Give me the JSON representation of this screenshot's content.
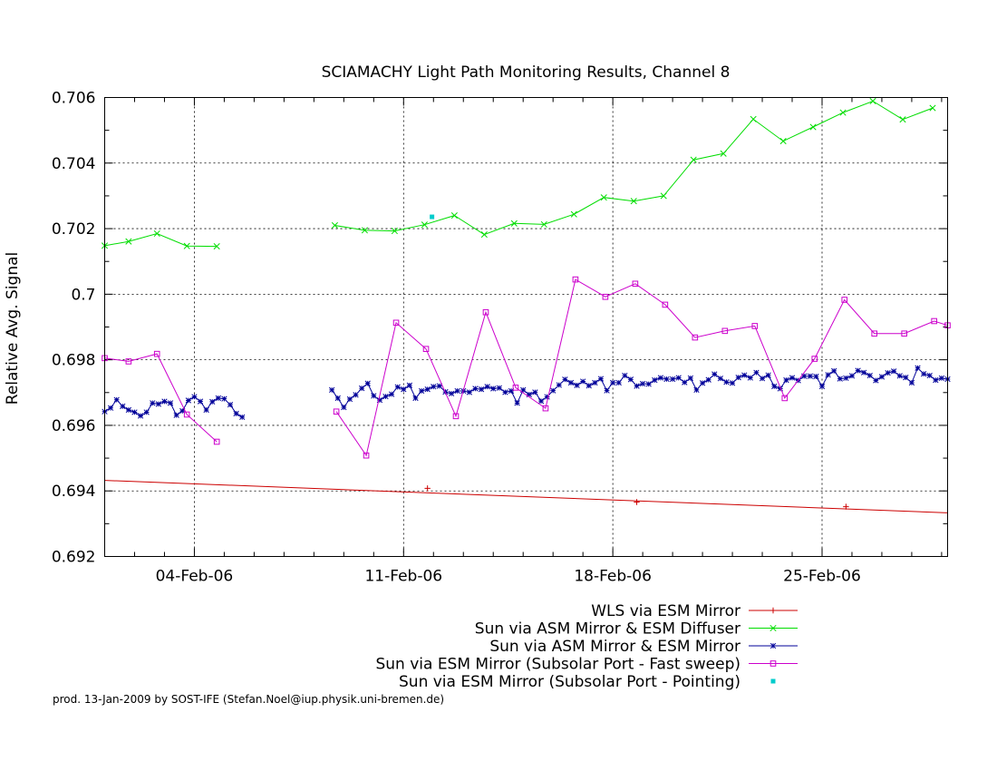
{
  "footer": "prod. 13-Jan-2009 by SOST-IFE (Stefan.Noel@iup.physik.uni-bremen.de)",
  "chart_data": {
    "type": "line",
    "title": "SCIAMACHY Light Path Monitoring Results, Channel 8",
    "xlabel": "",
    "ylabel": "Relative Avg. Signal",
    "xlim": [
      1.0,
      29.2
    ],
    "ylim": [
      0.692,
      0.706
    ],
    "x_ticks": [
      {
        "x": 4,
        "label": "04-Feb-06"
      },
      {
        "x": 11,
        "label": "11-Feb-06"
      },
      {
        "x": 18,
        "label": "18-Feb-06"
      },
      {
        "x": 25,
        "label": "25-Feb-06"
      }
    ],
    "y_ticks": [
      {
        "y": 0.692,
        "label": "0.692"
      },
      {
        "y": 0.694,
        "label": "0.694"
      },
      {
        "y": 0.696,
        "label": "0.696"
      },
      {
        "y": 0.698,
        "label": "0.698"
      },
      {
        "y": 0.7,
        "label": "0.7"
      },
      {
        "y": 0.702,
        "label": "0.702"
      },
      {
        "y": 0.704,
        "label": "0.704"
      },
      {
        "y": 0.706,
        "label": "0.706"
      }
    ],
    "grid": true,
    "legend_position": "bottom",
    "series": [
      {
        "name": "WLS via ESM Mirror",
        "color": "#cc0000",
        "marker": "plus",
        "segments": [
          [
            [
              1.0,
              0.69432
            ],
            [
              29.2,
              0.69333
            ]
          ]
        ],
        "marker_points": [
          [
            11.8,
            0.69408
          ],
          [
            18.8,
            0.69366
          ],
          [
            25.8,
            0.69352
          ]
        ]
      },
      {
        "name": "Sun via ASM Mirror & ESM Diffuser",
        "color": "#00dd00",
        "marker": "cross",
        "segments": [
          [
            [
              1.0,
              0.70148
            ],
            [
              1.8,
              0.70161
            ],
            [
              2.75,
              0.70185
            ],
            [
              3.75,
              0.70147
            ],
            [
              4.75,
              0.70146
            ]
          ],
          [
            [
              8.7,
              0.7021
            ],
            [
              9.7,
              0.70195
            ],
            [
              10.7,
              0.70193
            ],
            [
              11.7,
              0.70212
            ],
            [
              12.7,
              0.7024
            ],
            [
              13.7,
              0.70182
            ],
            [
              14.7,
              0.70216
            ],
            [
              15.7,
              0.70213
            ],
            [
              16.7,
              0.70244
            ],
            [
              17.7,
              0.70295
            ],
            [
              18.7,
              0.70284
            ],
            [
              19.7,
              0.703
            ],
            [
              20.7,
              0.7041
            ],
            [
              21.7,
              0.70429
            ],
            [
              22.7,
              0.70534
            ],
            [
              23.7,
              0.70467
            ],
            [
              24.7,
              0.7051
            ],
            [
              25.7,
              0.70554
            ],
            [
              26.7,
              0.70589
            ],
            [
              27.7,
              0.70533
            ],
            [
              28.7,
              0.70568
            ]
          ]
        ]
      },
      {
        "name": "Sun via ASM Mirror & ESM Mirror",
        "color": "#000099",
        "marker": "star",
        "segments": [
          [
            [
              1.0,
              0.69642
            ],
            [
              1.2,
              0.69653
            ],
            [
              1.4,
              0.69678
            ],
            [
              1.6,
              0.69658
            ],
            [
              1.8,
              0.69647
            ],
            [
              2.0,
              0.6964
            ],
            [
              2.2,
              0.69629
            ],
            [
              2.4,
              0.6964
            ],
            [
              2.6,
              0.69668
            ],
            [
              2.8,
              0.69665
            ],
            [
              3.0,
              0.69673
            ],
            [
              3.2,
              0.69668
            ],
            [
              3.4,
              0.69631
            ],
            [
              3.6,
              0.69644
            ],
            [
              3.8,
              0.69676
            ],
            [
              4.0,
              0.69687
            ],
            [
              4.2,
              0.69673
            ],
            [
              4.4,
              0.69647
            ],
            [
              4.6,
              0.69672
            ],
            [
              4.8,
              0.69683
            ],
            [
              5.0,
              0.69681
            ],
            [
              5.2,
              0.69663
            ],
            [
              5.4,
              0.69636
            ],
            [
              5.6,
              0.69625
            ]
          ],
          [
            [
              8.6,
              0.69708
            ],
            [
              8.8,
              0.69683
            ],
            [
              9.0,
              0.69655
            ],
            [
              9.2,
              0.6968
            ],
            [
              9.4,
              0.69693
            ],
            [
              9.6,
              0.69713
            ],
            [
              9.8,
              0.69728
            ],
            [
              10.0,
              0.6969
            ],
            [
              10.2,
              0.69677
            ],
            [
              10.4,
              0.69688
            ],
            [
              10.6,
              0.69695
            ],
            [
              10.8,
              0.69717
            ],
            [
              11.0,
              0.6971
            ],
            [
              11.2,
              0.69722
            ],
            [
              11.4,
              0.69683
            ],
            [
              11.6,
              0.69705
            ],
            [
              11.8,
              0.6971
            ],
            [
              12.0,
              0.69718
            ],
            [
              12.2,
              0.6972
            ],
            [
              12.4,
              0.69702
            ],
            [
              12.6,
              0.69697
            ],
            [
              12.8,
              0.69705
            ],
            [
              13.0,
              0.69705
            ],
            [
              13.2,
              0.69701
            ],
            [
              13.4,
              0.69712
            ],
            [
              13.6,
              0.6971
            ],
            [
              13.8,
              0.69718
            ],
            [
              14.0,
              0.69712
            ],
            [
              14.2,
              0.69714
            ],
            [
              14.4,
              0.69701
            ],
            [
              14.6,
              0.69705
            ],
            [
              14.8,
              0.69668
            ],
            [
              15.0,
              0.69708
            ],
            [
              15.2,
              0.69694
            ],
            [
              15.4,
              0.69701
            ],
            [
              15.6,
              0.69674
            ],
            [
              15.8,
              0.69687
            ],
            [
              16.0,
              0.69706
            ],
            [
              16.2,
              0.69723
            ],
            [
              16.4,
              0.6974
            ],
            [
              16.6,
              0.6973
            ],
            [
              16.8,
              0.69722
            ],
            [
              17.0,
              0.69734
            ],
            [
              17.2,
              0.69721
            ],
            [
              17.4,
              0.6973
            ],
            [
              17.6,
              0.69742
            ],
            [
              17.8,
              0.69706
            ],
            [
              18.0,
              0.6973
            ],
            [
              18.2,
              0.6973
            ],
            [
              18.4,
              0.69752
            ],
            [
              18.6,
              0.6974
            ],
            [
              18.8,
              0.6972
            ],
            [
              19.0,
              0.69727
            ],
            [
              19.2,
              0.69726
            ],
            [
              19.4,
              0.69738
            ],
            [
              19.6,
              0.69745
            ],
            [
              19.8,
              0.69741
            ],
            [
              20.0,
              0.69741
            ],
            [
              20.2,
              0.69745
            ],
            [
              20.4,
              0.69731
            ],
            [
              20.6,
              0.69744
            ],
            [
              20.8,
              0.69708
            ],
            [
              21.0,
              0.69729
            ],
            [
              21.2,
              0.69739
            ],
            [
              21.4,
              0.69756
            ],
            [
              21.6,
              0.69743
            ],
            [
              21.8,
              0.69732
            ],
            [
              22.0,
              0.69729
            ],
            [
              22.2,
              0.69746
            ],
            [
              22.4,
              0.69753
            ],
            [
              22.6,
              0.69745
            ],
            [
              22.8,
              0.69761
            ],
            [
              23.0,
              0.69743
            ],
            [
              23.2,
              0.69753
            ],
            [
              23.4,
              0.69719
            ],
            [
              23.6,
              0.69712
            ],
            [
              23.8,
              0.69738
            ],
            [
              24.0,
              0.69745
            ],
            [
              24.2,
              0.69737
            ],
            [
              24.4,
              0.6975
            ],
            [
              24.6,
              0.6975
            ],
            [
              24.8,
              0.69749
            ],
            [
              25.0,
              0.69719
            ],
            [
              25.2,
              0.69754
            ],
            [
              25.4,
              0.69766
            ],
            [
              25.6,
              0.69742
            ],
            [
              25.8,
              0.69744
            ],
            [
              26.0,
              0.69751
            ],
            [
              26.2,
              0.69767
            ],
            [
              26.4,
              0.69761
            ],
            [
              26.6,
              0.69752
            ],
            [
              26.8,
              0.69737
            ],
            [
              27.0,
              0.69748
            ],
            [
              27.2,
              0.6976
            ],
            [
              27.4,
              0.69765
            ],
            [
              27.6,
              0.69751
            ],
            [
              27.8,
              0.69746
            ],
            [
              28.0,
              0.6973
            ],
            [
              28.2,
              0.69775
            ],
            [
              28.4,
              0.69757
            ],
            [
              28.6,
              0.69752
            ],
            [
              28.8,
              0.69738
            ],
            [
              29.0,
              0.69744
            ],
            [
              29.2,
              0.69741
            ]
          ]
        ]
      },
      {
        "name": "Sun via ESM Mirror (Subsolar Port - Fast sweep)",
        "color": "#cc00cc",
        "marker": "square",
        "segments": [
          [
            [
              1.0,
              0.69805
            ],
            [
              1.8,
              0.69795
            ],
            [
              2.75,
              0.69818
            ],
            [
              3.75,
              0.69633
            ],
            [
              4.75,
              0.6955
            ]
          ],
          [
            [
              8.75,
              0.69642
            ],
            [
              9.75,
              0.69508
            ],
            [
              10.75,
              0.69913
            ],
            [
              11.75,
              0.69833
            ],
            [
              12.75,
              0.69628
            ],
            [
              13.75,
              0.69945
            ],
            [
              14.75,
              0.69715
            ],
            [
              15.75,
              0.69652
            ],
            [
              16.75,
              0.70045
            ],
            [
              17.75,
              0.69992
            ],
            [
              18.75,
              0.70032
            ],
            [
              19.75,
              0.69968
            ],
            [
              20.75,
              0.69868
            ],
            [
              21.75,
              0.69888
            ],
            [
              22.75,
              0.69903
            ],
            [
              23.75,
              0.69683
            ],
            [
              24.75,
              0.69803
            ],
            [
              25.75,
              0.69983
            ],
            [
              26.75,
              0.6988
            ],
            [
              27.75,
              0.6988
            ],
            [
              28.75,
              0.69918
            ],
            [
              29.2,
              0.69905
            ]
          ]
        ]
      },
      {
        "name": "Sun via ESM Mirror (Subsolar Port - Pointing)",
        "color": "#00cccc",
        "marker": "dot",
        "segments": [],
        "marker_points": [
          [
            11.95,
            0.70236
          ]
        ]
      }
    ]
  }
}
